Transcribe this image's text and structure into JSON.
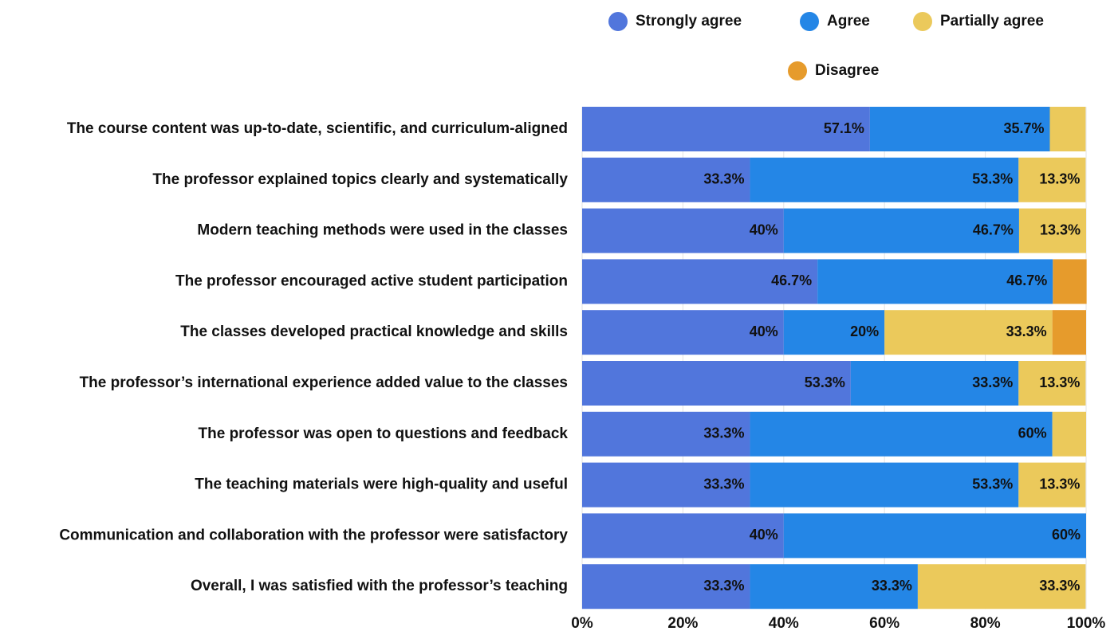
{
  "chart_data": {
    "type": "stacked_barh",
    "categories": [
      "The course content was up-to-date, scientific, and curriculum-aligned",
      "The professor explained topics clearly and systematically",
      "Modern teaching methods were used in the classes",
      "The professor encouraged active student participation",
      "The classes developed practical knowledge and skills",
      "The professor’s international experience added value to the classes",
      "The professor was open to questions and feedback",
      "The teaching materials were high-quality and useful",
      "Communication and collaboration with the professor were satisfactory",
      "Overall, I was satisfied with the professor’s teaching"
    ],
    "series": [
      {
        "name": "Strongly agree",
        "color": "#5176dc",
        "values": [
          57.1,
          33.3,
          40,
          46.7,
          40,
          53.3,
          33.3,
          33.3,
          40,
          33.3
        ],
        "value_labels": [
          "57.1%",
          "33.3%",
          "40%",
          "46.7%",
          "40%",
          "53.3%",
          "33.3%",
          "33.3%",
          "40%",
          "33.3%"
        ]
      },
      {
        "name": "Agree",
        "color": "#2486e6",
        "values": [
          35.7,
          53.3,
          46.7,
          46.7,
          20,
          33.3,
          60,
          53.3,
          60,
          33.3
        ],
        "value_labels": [
          "35.7%",
          "53.3%",
          "46.7%",
          "46.7%",
          "20%",
          "33.3%",
          "60%",
          "53.3%",
          "60%",
          "33.3%"
        ]
      },
      {
        "name": "Partially agree",
        "color": "#ebc95b",
        "values": [
          7.1,
          13.3,
          13.3,
          0,
          33.3,
          13.3,
          6.7,
          13.3,
          0,
          33.3
        ],
        "value_labels": [
          null,
          "13.3%",
          "13.3%",
          null,
          "33.3%",
          "13.3%",
          null,
          "13.3%",
          null,
          "33.3%"
        ]
      },
      {
        "name": "Disagree",
        "color": "#e69b2c",
        "values": [
          0,
          0,
          0,
          6.7,
          6.7,
          0,
          0,
          0,
          0,
          0
        ],
        "value_labels": [
          null,
          null,
          null,
          null,
          null,
          null,
          null,
          null,
          null,
          null
        ]
      }
    ],
    "xlim": [
      0,
      100
    ],
    "xticks": [
      {
        "value": 0,
        "label": "0%"
      },
      {
        "value": 20,
        "label": "20%"
      },
      {
        "value": 40,
        "label": "40%"
      },
      {
        "value": 60,
        "label": "60%"
      },
      {
        "value": 80,
        "label": "80%"
      },
      {
        "value": 100,
        "label": "100%"
      }
    ],
    "grid": true,
    "legend": "top"
  }
}
